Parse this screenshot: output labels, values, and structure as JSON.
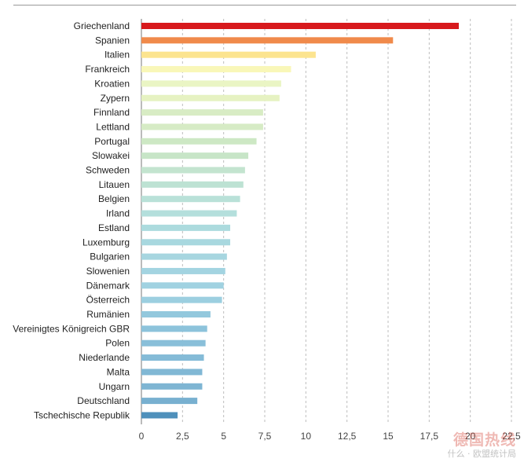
{
  "chart_data": {
    "type": "bar",
    "orientation": "horizontal",
    "title": "",
    "xlabel": "",
    "ylabel": "",
    "xlim": [
      0,
      22.5
    ],
    "x_ticks": [
      "0",
      "2,5",
      "5",
      "7,5",
      "10",
      "12,5",
      "15",
      "17,5",
      "20",
      "22,5"
    ],
    "x_tick_values": [
      0,
      2.5,
      5,
      7.5,
      10,
      12.5,
      15,
      17.5,
      20,
      22.5
    ],
    "grid": "vertical dashed",
    "categories": [
      "Griechenland",
      "Spanien",
      "Italien",
      "Frankreich",
      "Kroatien",
      "Zypern",
      "Finnland",
      "Lettland",
      "Portugal",
      "Slowakei",
      "Schweden",
      "Litauen",
      "Belgien",
      "Irland",
      "Estland",
      "Luxemburg",
      "Bulgarien",
      "Slowenien",
      "Dänemark",
      "Österreich",
      "Rumänien",
      "Vereinigtes Königreich GBR",
      "Polen",
      "Niederlande",
      "Malta",
      "Ungarn",
      "Deutschland",
      "Tschechische Republik"
    ],
    "values": [
      19.3,
      15.3,
      10.6,
      9.1,
      8.5,
      8.4,
      7.4,
      7.4,
      7.0,
      6.5,
      6.3,
      6.2,
      6.0,
      5.8,
      5.4,
      5.4,
      5.2,
      5.1,
      5.0,
      4.9,
      4.2,
      4.0,
      3.9,
      3.8,
      3.7,
      3.7,
      3.4,
      2.2
    ],
    "colors": [
      "#d7191c",
      "#f08a4b",
      "#fce48f",
      "#f9f7b8",
      "#eaf5c4",
      "#e6f2c2",
      "#d8ecc4",
      "#d6ebc5",
      "#cde8c4",
      "#c7e5c7",
      "#c3e4cf",
      "#bde2d3",
      "#b9e1d8",
      "#b4dfdc",
      "#acdbde",
      "#a8d8df",
      "#a7d6e0",
      "#a3d4e1",
      "#a0d2e1",
      "#9ccfe0",
      "#93c8dd",
      "#8dc3db",
      "#89bfd9",
      "#84bbd7",
      "#81b8d5",
      "#7eb5d3",
      "#78b0d0",
      "#4f90bb"
    ]
  },
  "watermark": {
    "logo": "德国热线",
    "text": "什么 · 欧盟统计局"
  }
}
